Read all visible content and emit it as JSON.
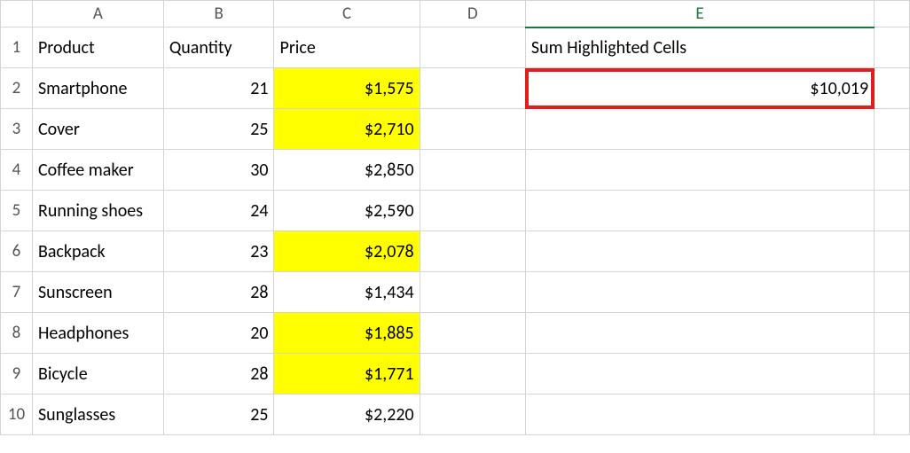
{
  "columns": [
    "A",
    "B",
    "C",
    "D",
    "E"
  ],
  "rowNumbers": [
    "1",
    "2",
    "3",
    "4",
    "5",
    "6",
    "7",
    "8",
    "9",
    "10"
  ],
  "colWidths": {
    "A": 148,
    "B": 125,
    "C": 165,
    "D": 120,
    "E": 395
  },
  "colors": {
    "highlight": "#ffff00",
    "redOutline": "#e31c1c",
    "gridline": "#d4d4d4",
    "selectedGreen": "#107c41"
  },
  "headers": {
    "product": "Product",
    "quantity": "Quantity",
    "price": "Price",
    "sumHighlighted": "Sum Highlighted Cells"
  },
  "sumValue": "$10,019",
  "rows": [
    {
      "A": "Smartphone",
      "B": "21",
      "C": "$1,575",
      "C_hl": true
    },
    {
      "A": "Cover",
      "B": "25",
      "C": "$2,710",
      "C_hl": true
    },
    {
      "A": "Coffee maker",
      "B": "30",
      "C": "$2,850",
      "C_hl": false
    },
    {
      "A": "Running shoes",
      "B": "24",
      "C": "$2,590",
      "C_hl": false
    },
    {
      "A": "Backpack",
      "B": "23",
      "C": "$2,078",
      "C_hl": true
    },
    {
      "A": "Sunscreen",
      "B": "28",
      "C": "$1,434",
      "C_hl": false
    },
    {
      "A": "Headphones",
      "B": "20",
      "C": "$1,885",
      "C_hl": true
    },
    {
      "A": "Bicycle",
      "B": "28",
      "C": "$1,771",
      "C_hl": true
    },
    {
      "A": "Sunglasses",
      "B": "25",
      "C": "$2,220",
      "C_hl": false
    }
  ],
  "selectedColumn": "E",
  "redOutlineCell": "E2"
}
